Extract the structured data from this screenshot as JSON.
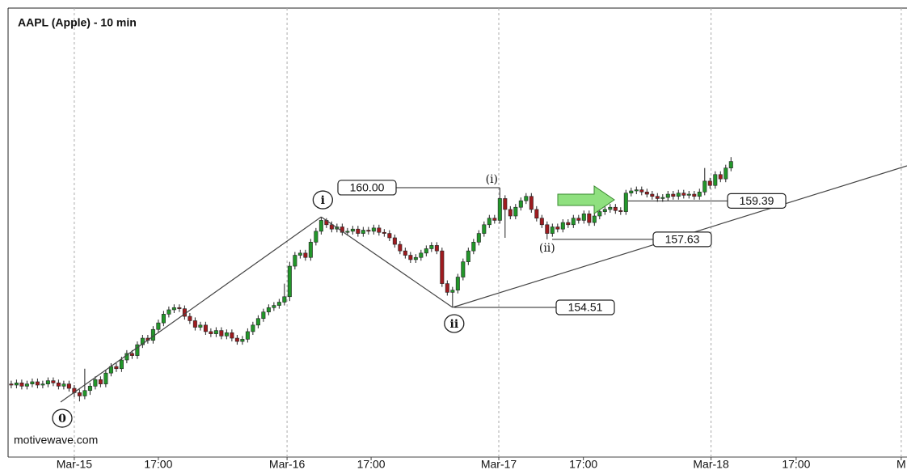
{
  "chart_data": {
    "type": "candlestick",
    "title": "AAPL (Apple) - 10 min",
    "watermark": "motivewave.com",
    "up_color": "#22962a",
    "down_color": "#9e1b1f",
    "xlim": [
      -0.6,
      170.5
    ],
    "ylim": [
      147.65,
      168.23
    ],
    "xticks": [
      {
        "value": 12,
        "label": "Mar-15"
      },
      {
        "value": 28,
        "label": "17:00"
      },
      {
        "value": 52.5,
        "label": "Mar-16"
      },
      {
        "value": 68.5,
        "label": "17:00"
      },
      {
        "value": 92.8,
        "label": "Mar-17"
      },
      {
        "value": 108.9,
        "label": "17:00"
      },
      {
        "value": 133.2,
        "label": "Mar-18"
      },
      {
        "value": 149.4,
        "label": "17:00"
      },
      {
        "value": 169.4,
        "label": "M"
      }
    ],
    "grid": true,
    "open": [
      151.0,
      150.95,
      151.05,
      150.9,
      151.0,
      151.1,
      150.95,
      151.0,
      151.15,
      151.05,
      150.9,
      151.0,
      150.8,
      150.6,
      150.45,
      150.7,
      150.9,
      151.2,
      151.0,
      151.5,
      151.8,
      151.7,
      152.1,
      152.4,
      152.3,
      152.8,
      153.1,
      153.0,
      153.5,
      153.8,
      154.2,
      154.4,
      154.5,
      154.45,
      154.1,
      153.9,
      153.6,
      153.7,
      153.4,
      153.3,
      153.45,
      153.2,
      153.35,
      153.1,
      152.95,
      153.05,
      153.4,
      153.7,
      154.0,
      154.3,
      154.5,
      154.6,
      154.75,
      155.0,
      156.4,
      156.9,
      157.0,
      156.8,
      157.5,
      158.0,
      158.5,
      158.3,
      158.1,
      158.2,
      157.95,
      158.0,
      158.1,
      157.9,
      158.05,
      158.0,
      158.15,
      157.95,
      157.9,
      157.7,
      157.4,
      157.1,
      156.9,
      156.7,
      156.8,
      157.0,
      157.2,
      157.35,
      157.1,
      155.6,
      155.2,
      155.3,
      155.9,
      156.6,
      157.1,
      157.5,
      157.9,
      158.3,
      158.6,
      158.5,
      159.5,
      159.0,
      158.7,
      159.1,
      159.4,
      159.6,
      159.0,
      158.6,
      158.3,
      157.9,
      158.2,
      158.1,
      158.4,
      158.3,
      158.6,
      158.5,
      158.8,
      158.4,
      158.7,
      158.9,
      159.0,
      159.1,
      158.95,
      158.9,
      159.75,
      159.85,
      159.9,
      159.8,
      159.7,
      159.6,
      159.5,
      159.55,
      159.7,
      159.6,
      159.75,
      159.65,
      159.7,
      159.6,
      159.8,
      160.3,
      160.1,
      160.6,
      160.4,
      160.9
    ],
    "high": [
      151.15,
      151.2,
      151.2,
      151.15,
      151.25,
      151.25,
      151.15,
      151.3,
      151.3,
      151.2,
      151.15,
      151.15,
      150.95,
      150.75,
      151.7,
      151.05,
      151.35,
      151.35,
      151.65,
      151.95,
      151.95,
      152.25,
      152.55,
      152.55,
      152.95,
      153.25,
      153.25,
      153.65,
      153.95,
      154.35,
      154.55,
      154.65,
      154.65,
      154.6,
      154.25,
      154.05,
      153.85,
      153.85,
      153.55,
      153.6,
      153.6,
      153.5,
      153.5,
      153.25,
      153.2,
      153.55,
      153.85,
      154.15,
      154.45,
      154.65,
      154.75,
      154.9,
      155.6,
      156.6,
      157.05,
      157.15,
      157.15,
      157.65,
      158.15,
      158.66,
      158.6,
      158.45,
      158.35,
      158.35,
      158.15,
      158.25,
      158.25,
      158.2,
      158.2,
      158.3,
      158.3,
      158.1,
      158.05,
      157.85,
      157.55,
      157.25,
      157.05,
      156.95,
      157.15,
      157.35,
      157.5,
      157.5,
      157.25,
      155.75,
      155.45,
      156.05,
      156.75,
      157.25,
      157.65,
      158.05,
      158.45,
      158.75,
      158.75,
      160.0,
      159.65,
      159.15,
      159.25,
      159.55,
      159.75,
      159.75,
      159.15,
      158.75,
      158.45,
      158.35,
      158.35,
      158.55,
      158.55,
      158.75,
      158.75,
      158.95,
      158.95,
      158.85,
      159.05,
      159.15,
      159.25,
      159.25,
      159.1,
      159.9,
      160.0,
      160.05,
      160.05,
      159.95,
      159.85,
      159.75,
      159.7,
      159.85,
      159.85,
      159.9,
      159.9,
      159.85,
      159.85,
      159.95,
      160.9,
      160.45,
      160.75,
      160.75,
      161.05,
      161.4
    ],
    "low": [
      150.8,
      150.8,
      150.75,
      150.75,
      150.85,
      150.8,
      150.8,
      150.85,
      150.9,
      150.75,
      150.75,
      150.65,
      150.4,
      150.2,
      150.3,
      150.5,
      150.75,
      150.85,
      150.85,
      151.35,
      151.55,
      151.55,
      151.95,
      152.15,
      152.15,
      152.65,
      152.85,
      152.85,
      153.35,
      153.65,
      154.05,
      154.25,
      154.3,
      153.95,
      153.75,
      153.45,
      153.45,
      153.25,
      153.15,
      153.15,
      153.05,
      153.05,
      152.95,
      152.8,
      152.8,
      152.9,
      153.25,
      153.55,
      153.85,
      154.15,
      154.35,
      154.45,
      154.6,
      154.8,
      156.25,
      156.75,
      156.65,
      156.65,
      157.35,
      157.85,
      158.15,
      157.95,
      157.95,
      157.8,
      157.8,
      157.85,
      157.75,
      157.75,
      157.85,
      157.85,
      157.8,
      157.75,
      157.55,
      157.25,
      156.95,
      156.75,
      156.55,
      156.55,
      156.65,
      156.85,
      157.05,
      156.95,
      155.45,
      155.05,
      154.51,
      155.15,
      155.75,
      156.45,
      156.95,
      157.35,
      157.75,
      158.15,
      158.35,
      158.35,
      157.7,
      158.55,
      158.55,
      158.95,
      159.25,
      158.85,
      158.45,
      158.15,
      157.63,
      157.75,
      157.95,
      157.95,
      158.15,
      158.15,
      158.35,
      158.35,
      158.25,
      158.25,
      158.55,
      158.75,
      158.85,
      158.8,
      158.75,
      158.75,
      159.6,
      159.7,
      159.65,
      159.55,
      159.45,
      159.35,
      159.35,
      159.4,
      159.45,
      159.45,
      159.5,
      159.5,
      159.45,
      159.45,
      159.65,
      159.95,
      159.95,
      160.25,
      160.25,
      160.75
    ],
    "close": [
      150.95,
      151.05,
      150.9,
      151.0,
      151.1,
      150.95,
      151.0,
      151.15,
      151.05,
      150.9,
      151.0,
      150.8,
      150.6,
      150.45,
      150.7,
      150.9,
      151.2,
      151.0,
      151.5,
      151.8,
      151.7,
      152.1,
      152.4,
      152.3,
      152.8,
      153.1,
      153.0,
      153.5,
      153.8,
      154.2,
      154.4,
      154.5,
      154.45,
      154.1,
      153.9,
      153.6,
      153.7,
      153.4,
      153.3,
      153.45,
      153.2,
      153.35,
      153.1,
      152.95,
      153.05,
      153.4,
      153.7,
      154.0,
      154.3,
      154.5,
      154.6,
      154.75,
      155.0,
      156.4,
      156.9,
      157.0,
      156.8,
      157.5,
      158.0,
      158.5,
      158.3,
      158.1,
      158.2,
      157.95,
      158.0,
      158.1,
      157.9,
      158.05,
      158.0,
      158.15,
      157.95,
      157.9,
      157.7,
      157.4,
      157.1,
      156.9,
      156.7,
      156.8,
      157.0,
      157.2,
      157.35,
      157.1,
      155.6,
      155.2,
      155.3,
      155.9,
      156.6,
      157.1,
      157.5,
      157.9,
      158.3,
      158.6,
      158.5,
      159.5,
      159.0,
      158.7,
      159.1,
      159.4,
      159.6,
      159.0,
      158.6,
      158.3,
      157.9,
      158.2,
      158.1,
      158.4,
      158.3,
      158.6,
      158.5,
      158.8,
      158.4,
      158.7,
      158.9,
      159.0,
      159.1,
      158.95,
      158.9,
      159.75,
      159.85,
      159.9,
      159.8,
      159.7,
      159.6,
      159.5,
      159.55,
      159.7,
      159.6,
      159.75,
      159.65,
      159.7,
      159.6,
      159.8,
      160.3,
      160.1,
      160.6,
      160.4,
      160.9,
      161.2
    ],
    "waves": [
      {
        "label": "0",
        "x": 9.4,
        "y": 150.17
      },
      {
        "label": "i",
        "x": 59,
        "y": 158.66
      },
      {
        "label": "ii",
        "x": 84,
        "y": 154.51
      }
    ],
    "minor_waves": [
      {
        "label": "(i)",
        "x": 93,
        "y": 160.0
      },
      {
        "label": "(ii)",
        "x": 102,
        "y": 157.63
      }
    ],
    "channel_line": {
      "x": [
        84,
        170.5
      ],
      "y": [
        154.51,
        161.0
      ]
    },
    "price_levels": [
      {
        "value": 160.0,
        "label": "160.00"
      },
      {
        "value": 154.51,
        "label": "154.51"
      },
      {
        "value": 157.63,
        "label": "157.63"
      },
      {
        "value": 159.39,
        "label": "159.39"
      }
    ]
  }
}
